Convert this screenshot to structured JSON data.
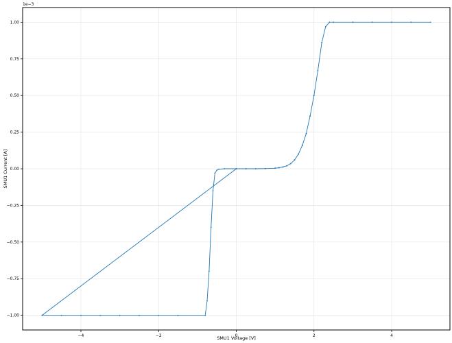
{
  "chart_data": {
    "type": "line",
    "title": "",
    "xlabel": "SMU1 Voltage [V]",
    "ylabel": "SMU1 Current [A]",
    "y_offset_text": "1e−3",
    "xlim": [
      -5.5,
      5.5
    ],
    "ylim": [
      -1.1,
      1.1
    ],
    "grid": true,
    "legend": "none",
    "x_ticks": [
      -4,
      -2,
      0,
      2,
      4
    ],
    "x_tick_labels": [
      "−4",
      "−2",
      "0",
      "2",
      "4"
    ],
    "y_ticks": [
      -1.0,
      -0.75,
      -0.5,
      -0.25,
      0.0,
      0.25,
      0.5,
      0.75,
      1.0
    ],
    "y_tick_labels": [
      "−1.00",
      "−0.75",
      "−0.50",
      "−0.25",
      "0.00",
      "0.25",
      "0.50",
      "0.75",
      "1.00"
    ],
    "series": [
      {
        "color": "#1f77b4",
        "marker": "dot",
        "x": [
          0,
          0.25,
          0.5,
          0.75,
          1.0,
          1.1,
          1.2,
          1.3,
          1.4,
          1.5,
          1.6,
          1.7,
          1.8,
          1.9,
          2.0,
          2.1,
          2.2,
          2.3,
          2.4,
          2.5,
          3.0,
          3.5,
          4.0,
          4.5,
          5.0,
          4.5,
          4.0,
          3.5,
          3.0,
          2.5,
          2.4,
          2.3,
          2.2,
          2.1,
          2.0,
          1.9,
          1.8,
          1.7,
          1.6,
          1.5,
          1.4,
          1.3,
          1.2,
          1.1,
          1.0,
          0.75,
          0.5,
          0.25,
          0,
          -0.3,
          -0.45,
          -0.5,
          -0.55,
          -0.6,
          -0.65,
          -0.7,
          -0.75,
          -0.8,
          -1.5,
          -2.0,
          -2.5,
          -3.0,
          -3.5,
          -4.0,
          -4.5,
          -5.0,
          0
        ],
        "y": [
          0,
          0,
          0,
          0.001,
          0.004,
          0.007,
          0.012,
          0.02,
          0.035,
          0.06,
          0.1,
          0.16,
          0.24,
          0.36,
          0.5,
          0.67,
          0.86,
          0.97,
          1.0,
          1.0,
          1.0,
          1.0,
          1.0,
          1.0,
          1.0,
          1.0,
          1.0,
          1.0,
          1.0,
          1.0,
          1.0,
          0.97,
          0.86,
          0.67,
          0.5,
          0.36,
          0.24,
          0.16,
          0.1,
          0.06,
          0.035,
          0.02,
          0.012,
          0.007,
          0.004,
          0.001,
          0,
          0,
          0,
          0,
          -0.003,
          -0.01,
          -0.03,
          -0.15,
          -0.4,
          -0.7,
          -0.9,
          -1.0,
          -1.0,
          -1.0,
          -1.0,
          -1.0,
          -1.0,
          -1.0,
          -1.0,
          -1.0,
          0
        ]
      }
    ]
  }
}
